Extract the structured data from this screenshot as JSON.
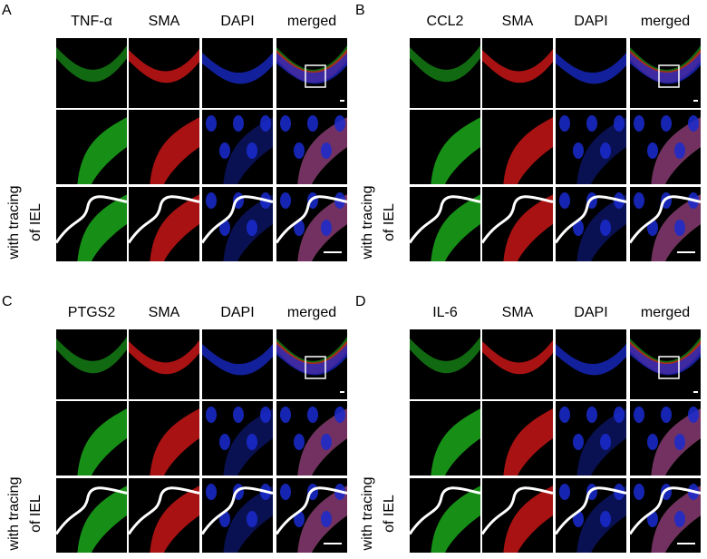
{
  "panels": [
    {
      "letter": "A",
      "columns": [
        "TNF-α",
        "SMA",
        "DAPI",
        "merged"
      ],
      "side_label": [
        "with tracing",
        "of IEL"
      ]
    },
    {
      "letter": "B",
      "columns": [
        "CCL2",
        "SMA",
        "DAPI",
        "merged"
      ],
      "side_label": [
        "with tracing",
        "of IEL"
      ]
    },
    {
      "letter": "C",
      "columns": [
        "PTGS2",
        "SMA",
        "DAPI",
        "merged"
      ],
      "side_label": [
        "with tracing",
        "of IEL"
      ]
    },
    {
      "letter": "D",
      "columns": [
        "IL-6",
        "SMA",
        "DAPI",
        "merged"
      ],
      "side_label": [
        "with tracing",
        "of IEL"
      ]
    }
  ]
}
